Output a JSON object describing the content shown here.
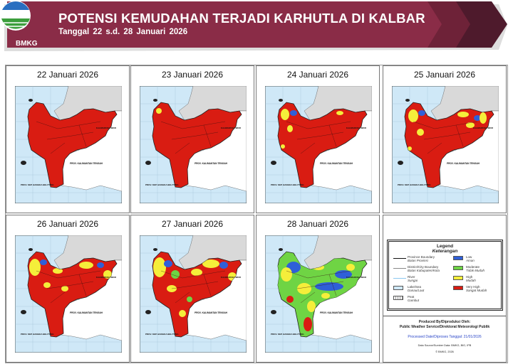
{
  "header": {
    "logo_text": "BMKG",
    "title": "POTENSI KEMUDAHAN TERJADI KARHUTLA DI KALBAR",
    "subtitle": "Tanggal  22 s.d. 28 Januari  2026",
    "color": "#8a2c47"
  },
  "maps": [
    {
      "date": "22 Januari 2026",
      "dominant_level": "Very High"
    },
    {
      "date": "23 Januari 2026",
      "dominant_level": "Very High"
    },
    {
      "date": "24 Januari 2026",
      "dominant_level": "Very High"
    },
    {
      "date": "25 Januari 2026",
      "dominant_level": "Very High"
    },
    {
      "date": "26 Januari 2026",
      "dominant_level": "Very High"
    },
    {
      "date": "27 Januari 2026",
      "dominant_level": "Very High"
    },
    {
      "date": "28 Januari 2026",
      "dominant_level": "Moderate"
    }
  ],
  "map_labels": {
    "kalteng": "PROV. KALIMANTAN TENGAH",
    "babel": "PROV. KEP. BANGKA BELITUNG",
    "kaltim": "KALIMANTAN TIMUR"
  },
  "legend": {
    "title": "Legend",
    "subtitle": "Keterangan",
    "lines": [
      {
        "en": "Province Boundary",
        "id": "Batas Provinsi"
      },
      {
        "en": "District/City Boundary",
        "id": "Batas Kabupaten/Kota"
      },
      {
        "en": "River",
        "id": "Sungai"
      },
      {
        "en": "Lake/Sea",
        "id": "Danau/Laut"
      },
      {
        "en": "Peat",
        "id": "Gambut"
      }
    ],
    "levels": [
      {
        "en": "Low",
        "id": "Aman",
        "color": "#2f5fd8"
      },
      {
        "en": "Moderate",
        "id": "Tidak Mudah",
        "color": "#6fd444"
      },
      {
        "en": "High",
        "id": "Mudah",
        "color": "#f5ee3a"
      },
      {
        "en": "Very High",
        "id": "Sangat Mudah",
        "color": "#d91c12"
      }
    ],
    "produced_by": "Produced By/Diproduksi Oleh:",
    "producer": "Public Weather Service/Direktorat Meteorologi Publik",
    "processed": "Processed Date/Diproses Tanggal: 21/01/2026",
    "source": "Data Source/Sumber Data: BMKG, BIG, IPB",
    "copyright": "© BMKG, 2026"
  }
}
